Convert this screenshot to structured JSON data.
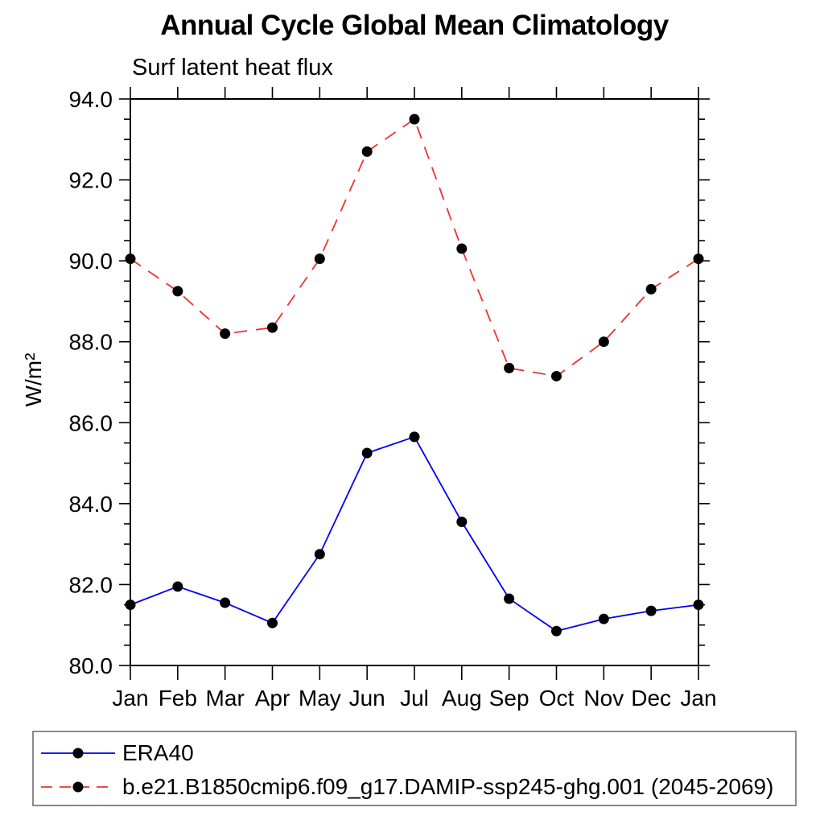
{
  "chart_data": {
    "type": "line",
    "title": "Annual Cycle Global Mean Climatology",
    "subtitle": "Surf latent heat flux",
    "ylabel": "W/m²",
    "xlabel": "",
    "categories": [
      "Jan",
      "Feb",
      "Mar",
      "Apr",
      "May",
      "Jun",
      "Jul",
      "Aug",
      "Sep",
      "Oct",
      "Nov",
      "Dec",
      "Jan"
    ],
    "ylim": [
      80.0,
      94.0
    ],
    "ytick_major": 2.0,
    "ytick_minor": 0.5,
    "ytick_label_format": "one_decimal",
    "grid": false,
    "legend_position": "bottom",
    "axis_color": "#000000",
    "marker_shape": "filled-circle",
    "series": [
      {
        "name": "ERA40",
        "color": "#0000f0",
        "line_style": "solid",
        "marker_color": "#000000",
        "values": [
          81.5,
          81.95,
          81.55,
          81.05,
          82.75,
          85.25,
          85.65,
          83.55,
          81.65,
          80.85,
          81.15,
          81.35,
          81.5
        ]
      },
      {
        "name": "b.e21.B1850cmip6.f09_g17.DAMIP-ssp245-ghg.001 (2045-2069)",
        "color": "#f03030",
        "line_style": "dashed",
        "marker_color": "#000000",
        "values": [
          90.05,
          89.25,
          88.2,
          88.35,
          90.05,
          92.7,
          93.5,
          90.3,
          87.35,
          87.15,
          88.0,
          89.3,
          90.05
        ]
      }
    ]
  }
}
